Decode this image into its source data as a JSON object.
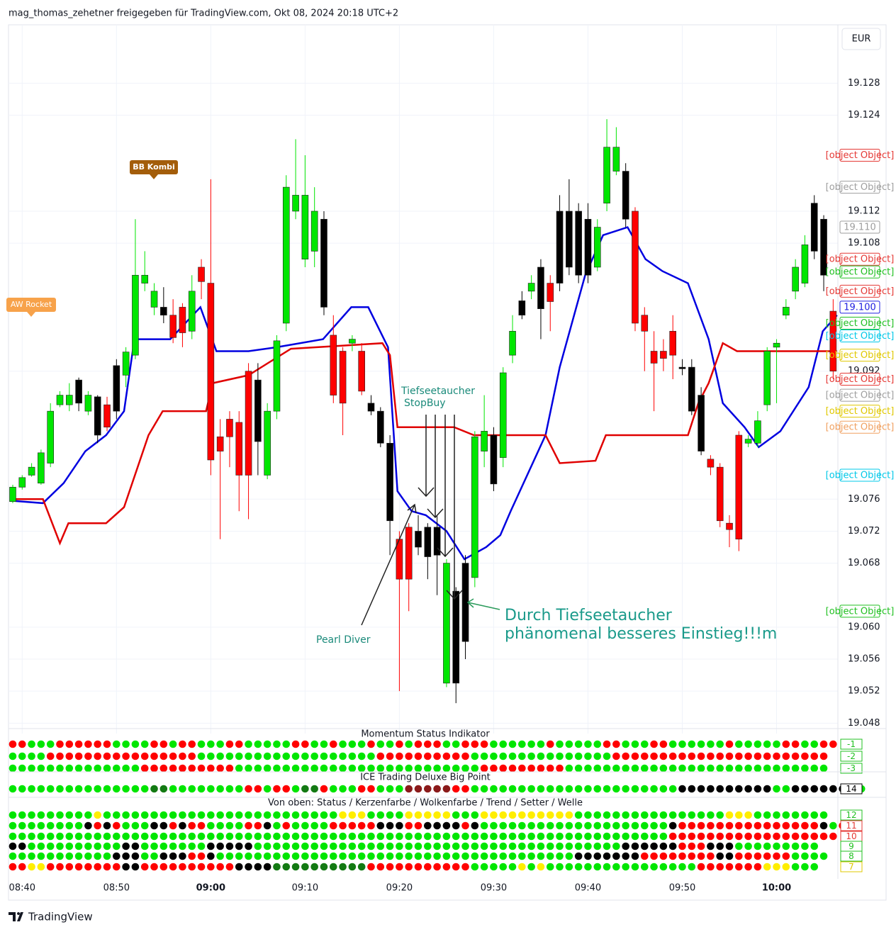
{
  "chart_data": {
    "type": "candlestick",
    "header": "mag_thomas_zehetner freigegeben für TradingView.com, Okt 08, 2024 20:18 UTC+2",
    "currency": "EUR",
    "brand": "TradingView",
    "xlim": [
      -0.45,
      87.5
    ],
    "ylim": [
      19.0467,
      19.1353
    ],
    "grid": true,
    "xticks": [
      {
        "value": 1,
        "label": "08:40"
      },
      {
        "value": 11,
        "label": "08:50"
      },
      {
        "value": 21,
        "label": "09:00",
        "bold": true
      },
      {
        "value": 31,
        "label": "09:10"
      },
      {
        "value": 41,
        "label": "09:20"
      },
      {
        "value": 51,
        "label": "09:30"
      },
      {
        "value": 61,
        "label": "09:40"
      },
      {
        "value": 71,
        "label": "09:50"
      },
      {
        "value": 81,
        "label": "10:00",
        "bold": true
      }
    ],
    "yticks": [
      19.048,
      19.052,
      19.056,
      {
        "value": 19.06,
        "label": "19.060"
      },
      19.068,
      19.072,
      19.076,
      19.092,
      19.108,
      19.112,
      19.124,
      19.128
    ],
    "candle_colors": {
      "g": "#00e600",
      "r": "#ff0000",
      "k": "#000000"
    },
    "colors": "gggggggkgkrkggggkrrgrrrrrrkggggggkrrgrkkkrrkkkgkkggkggkgkrkkkkgggkrrrrrkkkrrrrgggggggkkr",
    "open": [
      19.0757,
      19.0775,
      19.079,
      19.078,
      19.0805,
      19.0878,
      19.0878,
      19.0909,
      19.087,
      19.0888,
      19.0878,
      19.0927,
      19.0915,
      19.094,
      19.103,
      19.1,
      19.1,
      19.099,
      19.1,
      19.097,
      19.105,
      19.103,
      19.0838,
      19.086,
      19.0856,
      19.092,
      19.0909,
      19.079,
      19.087,
      19.098,
      19.112,
      19.106,
      19.107,
      19.111,
      19.0965,
      19.0945,
      19.0955,
      19.0945,
      19.088,
      19.087,
      19.083,
      19.071,
      19.0725,
      19.072,
      19.0725,
      19.0725,
      19.053,
      19.0645,
      19.068,
      19.0662,
      19.082,
      19.084,
      19.0812,
      19.094,
      19.1008,
      19.102,
      19.105,
      19.103,
      19.112,
      19.112,
      19.112,
      19.111,
      19.105,
      19.113,
      19.117,
      19.117,
      19.112,
      19.099,
      19.0945,
      19.0945,
      19.097,
      19.0925,
      19.0925,
      19.089,
      19.081,
      19.08,
      19.073,
      19.084,
      19.083,
      19.083,
      19.0878,
      19.095,
      19.099,
      19.102,
      19.103,
      19.113,
      19.111,
      19.0995
    ],
    "high": [
      19.0778,
      19.079,
      19.0805,
      19.0822,
      19.088,
      19.0895,
      19.0905,
      19.0912,
      19.0895,
      19.089,
      19.0888,
      19.0935,
      19.095,
      19.111,
      19.107,
      19.103,
      19.1025,
      19.101,
      19.1005,
      19.104,
      19.106,
      19.116,
      19.086,
      19.087,
      19.087,
      19.093,
      19.093,
      19.088,
      19.0965,
      19.1165,
      19.121,
      19.119,
      19.115,
      19.112,
      19.099,
      19.095,
      19.0965,
      19.0955,
      19.089,
      19.0875,
      19.084,
      19.072,
      19.073,
      19.074,
      19.073,
      19.074,
      19.0685,
      19.065,
      19.069,
      19.0845,
      19.089,
      19.085,
      19.0925,
      19.099,
      19.102,
      19.104,
      19.106,
      19.104,
      19.114,
      19.116,
      19.113,
      19.113,
      19.111,
      19.1235,
      19.1225,
      19.118,
      19.1125,
      19.1,
      19.097,
      19.096,
      19.099,
      19.0935,
      19.0935,
      19.09,
      19.0815,
      19.0805,
      19.074,
      19.0845,
      19.084,
      19.087,
      19.095,
      19.096,
      19.101,
      19.106,
      19.109,
      19.114,
      19.1115,
      19.101
    ],
    "low": [
      19.0755,
      19.0772,
      19.0788,
      19.0778,
      19.08,
      19.0875,
      19.087,
      19.087,
      19.0865,
      19.083,
      19.0845,
      19.086,
      19.09,
      19.0935,
      19.102,
      19.099,
      19.098,
      19.0955,
      19.095,
      19.096,
      19.101,
      19.079,
      19.071,
      19.08,
      19.0745,
      19.0735,
      19.079,
      19.0785,
      19.086,
      19.097,
      19.111,
      19.105,
      19.105,
      19.099,
      19.088,
      19.084,
      19.0945,
      19.089,
      19.0865,
      19.0825,
      19.069,
      19.052,
      19.062,
      19.069,
      19.066,
      19.064,
      19.0525,
      19.0505,
      19.056,
      19.065,
      19.08,
      19.077,
      19.08,
      19.093,
      19.0985,
      19.101,
      19.096,
      19.097,
      19.102,
      19.104,
      19.103,
      19.103,
      19.1045,
      19.112,
      19.1165,
      19.11,
      19.097,
      19.092,
      19.087,
      19.092,
      19.091,
      19.0915,
      19.0865,
      19.0815,
      19.079,
      19.0725,
      19.07,
      19.0695,
      19.0825,
      19.0825,
      19.087,
      19.088,
      19.0985,
      19.101,
      19.1025,
      19.106,
      19.102,
      19.091
    ],
    "close": [
      19.0775,
      19.0787,
      19.08,
      19.0818,
      19.087,
      19.089,
      19.089,
      19.088,
      19.089,
      19.084,
      19.085,
      19.087,
      19.0944,
      19.104,
      19.104,
      19.102,
      19.099,
      19.0962,
      19.0968,
      19.102,
      19.1032,
      19.0809,
      19.082,
      19.0838,
      19.079,
      19.079,
      19.0832,
      19.087,
      19.0958,
      19.115,
      19.114,
      19.114,
      19.112,
      19.1,
      19.089,
      19.088,
      19.096,
      19.0895,
      19.087,
      19.083,
      19.0733,
      19.066,
      19.066,
      19.07,
      19.0688,
      19.069,
      19.068,
      19.053,
      19.0582,
      19.0838,
      19.0845,
      19.0779,
      19.0918,
      19.097,
      19.099,
      19.103,
      19.0998,
      19.1007,
      19.103,
      19.105,
      19.104,
      19.104,
      19.11,
      19.12,
      19.12,
      19.111,
      19.098,
      19.097,
      19.093,
      19.0936,
      19.094,
      19.0923,
      19.087,
      19.082,
      19.08,
      19.0733,
      19.0722,
      19.071,
      19.0835,
      19.0858,
      19.0945,
      19.0955,
      19.1,
      19.105,
      19.1078,
      19.107,
      19.104,
      19.092
    ],
    "lines": [
      {
        "color": "#0000e0",
        "x": [
          0,
          3.2,
          5.4,
          7.7,
          9.9,
          11.8,
          12.9,
          16.7,
          19.9,
          21.6,
          25,
          28,
          32.9,
          35.9,
          37.7,
          39.8,
          40.8,
          42.3,
          43.8,
          46,
          47.9,
          50.2,
          51.7,
          52.8,
          56.5,
          58,
          60.7,
          62.6,
          65.2,
          67.1,
          68.9,
          71.6,
          73.8,
          75.3,
          77.6,
          79.1,
          81.4,
          84.4,
          85.9,
          87.4
        ],
        "values": [
          19.0758,
          19.0755,
          19.078,
          19.082,
          19.084,
          19.087,
          19.096,
          19.096,
          19.1,
          19.0945,
          19.0945,
          19.095,
          19.096,
          19.1,
          19.1,
          19.095,
          19.077,
          19.0745,
          19.074,
          19.072,
          19.0685,
          19.07,
          19.0715,
          19.0745,
          19.084,
          19.0925,
          19.104,
          19.109,
          19.11,
          19.106,
          19.1045,
          19.103,
          19.096,
          19.088,
          19.085,
          19.0825,
          19.0845,
          19.09,
          19.097,
          19.099
        ]
      },
      {
        "color": "#e00000",
        "x": [
          0,
          3.2,
          5,
          5.9,
          9.9,
          11.8,
          14.4,
          15.9,
          20.5,
          21.2,
          25,
          29.5,
          39.2,
          40,
          40.8,
          46.8,
          48.9,
          56.5,
          58,
          61.8,
          62.9,
          71.6,
          72.7,
          73.8,
          75.3,
          76.8,
          87.4
        ],
        "values": [
          19.076,
          19.076,
          19.0705,
          19.073,
          19.073,
          19.075,
          19.084,
          19.087,
          19.087,
          19.0905,
          19.0915,
          19.0948,
          19.0955,
          19.094,
          19.085,
          19.085,
          19.084,
          19.084,
          19.0805,
          19.0808,
          19.084,
          19.084,
          19.088,
          19.0905,
          19.0955,
          19.0945,
          19.0945
        ]
      }
    ],
    "price_tags": [
      {
        "value": 19.119,
        "color": "#e53935"
      },
      {
        "value": 19.115,
        "color": "#9e9e9e"
      },
      {
        "value": 19.11,
        "label": "19.110",
        "color": "#9e9e9e"
      },
      {
        "value": 19.106,
        "color": "#e53935"
      },
      {
        "value": 19.105,
        "color": "#22c022"
      },
      {
        "value": 19.102,
        "color": "#e53935"
      },
      {
        "value": 19.1,
        "label": "19.100",
        "color": "#2020e0"
      },
      {
        "value": 19.098,
        "color": "#22c022"
      },
      {
        "value": 19.097,
        "color": "#00c8e8"
      },
      {
        "value": 19.094,
        "color": "#e0c800"
      },
      {
        "value": 19.091,
        "color": "#e53935"
      },
      {
        "value": 19.089,
        "color": "#9e9e9e"
      },
      {
        "value": 19.087,
        "color": "#e0c800"
      },
      {
        "value": 19.085,
        "color": "#f0a060"
      },
      {
        "value": 19.079,
        "color": "#00c8e8"
      },
      {
        "value": 19.062,
        "color": "#22c022"
      }
    ],
    "annotations": {
      "bb_kombi": "BB Kombi",
      "aw_rocket": "AW Rocket",
      "stop_buy": [
        "Tiefseetaucher",
        "StopBuy"
      ],
      "pearl_diver": "Pearl Diver",
      "comment": [
        "Durch Tiefseetaucher",
        "phänomenal besseres Einstieg!!!m"
      ]
    },
    "dot_colors": {
      "G": "#00e600",
      "R": "#ff0000",
      "K": "#000000",
      "Y": "#ffee00",
      "D": "#137a13",
      "M": "#8b1a1a"
    },
    "indicators": [
      {
        "title": "Momentum Status Indikator",
        "rows": [
          {
            "label": "-1",
            "label_color": "#22c022",
            "dots": "RRGGGRRRRRRGGGGRRGRRGGGRRGGGGGRRGGRGGGRGGRGRRRGGRRRGGGGGGRGGGGGRRGGGRRGGGGGGRGGGGGRRGGRR"
          },
          {
            "label": "-2",
            "label_color": "#22c022",
            "dots": "GGGGRRRRRRRRRRRRRRRRGGGGGGGGGGGGGGGGGGGRRRRRRRRRRGGGGGGGGGGGGGGGRRRRRRRRRRRRRRRRRRRRRRR"
          },
          {
            "label": "-3",
            "label_color": "#22c022",
            "dots": "GGGGGGGGGGGGGGRRRRRRRRRRGGGGGGGGGGGGGGGGGGGGGGGGGGRRRRRRRRRGGGGGGGGGGGGGGGGGGGGGGGGGGGG"
          }
        ]
      },
      {
        "title": "ICE Trading Deluxe Big Point",
        "rows": [
          {
            "label": "14",
            "label_color": "#000000",
            "dots": "GGGGGGGGGGGGGGGDDGGGGGGGGRRGRRGDDRGGGRRGGGMMMMMRRGGGGGGGGGGGGGGGGGGGGGGKKKKKKKKKKGGKKKKKKKG"
          }
        ]
      },
      {
        "title": "Von oben: Status / Kerzenfarbe / Wolkenfarbe / Trend / Setter / Welle",
        "rows": [
          {
            "label": "12",
            "label_color": "#22c022",
            "dots": "GGGGGGGGGYGGGGGGGGGGGGGGGGGGGGGGGGGYYYGGGGYYYYYGGGYYYYYYYYYYGGGGGGGGGGGGGGGGYYYGGGGGGGG"
          },
          {
            "label": "11",
            "label_color": "#e53935",
            "dots": "GGGGGGGGKRKRGGGKKRKRRGGGGRRKGRGGGGRRRRRKKKRRKKKKRKGGGGGGGGGGGGGGGGGGGGKRRRRRRRRRRRRRRRKGR"
          },
          {
            "label": "10",
            "label_color": "#e53935",
            "dots": "GGGGGGGGGGGGGGGGGGGGGGGGGGGGGGGGGGGGGGGGGGGGGGGGGGGGGGGGGGGGGGGGGGGGGGRRRRRRRRRRRRRRRRRR"
          },
          {
            "label": "9",
            "label_color": "#22c022",
            "dots": "KKGGGGGGGGGGKKGGGGGGGKKKKKGGGGGGGGGGGGGGGGGGGGGGGGGGGGGGGGGGGGGGGKKKKKKRRRKKKGGGGGGGGG"
          },
          {
            "label": "8",
            "label_color": "#22c022",
            "dots": "GGGGGGGGGGGKKKGGKKKRRKGGGGGGGGGGGGGGGGGGGGGGGGGGGGGGGGGGGGGGKKKKKKKRRRRRRRRKKRRRRRRGGGG"
          },
          {
            "label": "7",
            "label_color": "#e0c800",
            "dots": "RRYYRRRRRRRRKKRRRRRRRRRRKKKKDDDDDDDDDDRRRRRRRRRRRGGGGGYGYGGGGGGGGGGGGGGGGRRRRRRRYYYGGG"
          }
        ]
      }
    ]
  }
}
